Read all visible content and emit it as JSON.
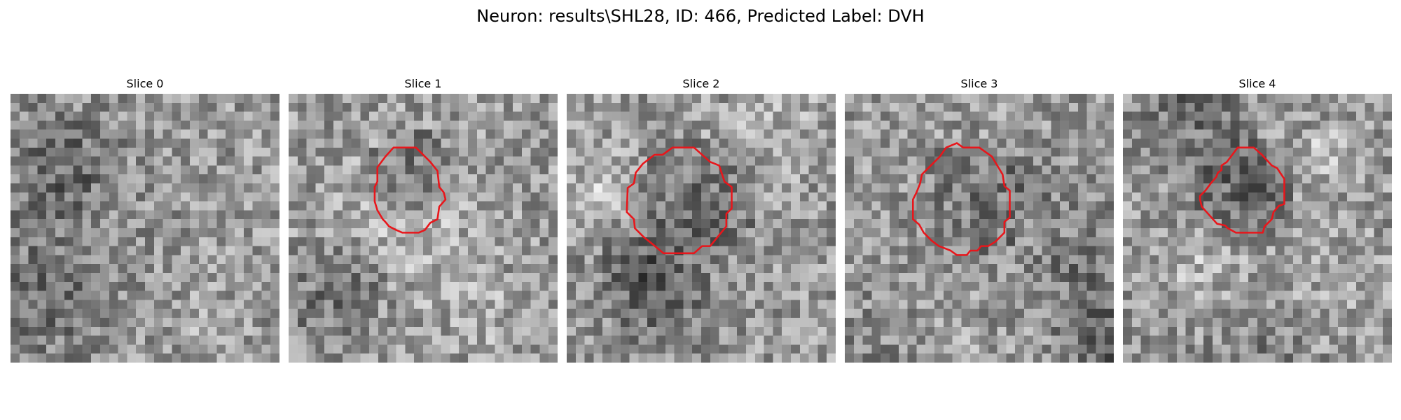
{
  "figure": {
    "title": "Neuron: results\\SHL28, ID: 466, Predicted Label: DVH",
    "contour_color": "#e8161b",
    "colormap": "gray"
  },
  "slices": [
    {
      "label": "Slice 0",
      "has_contour": false
    },
    {
      "label": "Slice 1",
      "has_contour": true
    },
    {
      "label": "Slice 2",
      "has_contour": true
    },
    {
      "label": "Slice 3",
      "has_contour": true
    },
    {
      "label": "Slice 4",
      "has_contour": true
    }
  ]
}
